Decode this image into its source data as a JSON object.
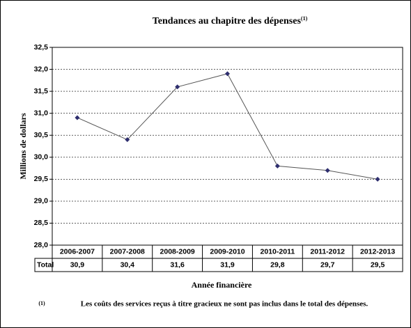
{
  "chart_data": {
    "type": "line",
    "title": "Tendances au chapitre des dépenses",
    "title_note": "(1)",
    "y_label": "Millions de dollars",
    "x_label": "Année financière",
    "categories": [
      "2006-2007",
      "2007-2008",
      "2008-2009",
      "2009-2010",
      "2010-2011",
      "2011-2012",
      "2012-2013"
    ],
    "values": [
      30.9,
      30.4,
      31.6,
      31.9,
      29.8,
      29.7,
      29.5
    ],
    "value_labels": [
      "30,9",
      "30,4",
      "31,6",
      "31,9",
      "29,8",
      "29,7",
      "29,5"
    ],
    "table_row_label": "Total",
    "line_color": "#555555",
    "marker_color": "#2e2e6e",
    "ylim": [
      28,
      32.5
    ],
    "yticks": [
      {
        "value": 28,
        "label": "28,0"
      },
      {
        "value": 28.5,
        "label": "28,5"
      },
      {
        "value": 29,
        "label": "29,0"
      },
      {
        "value": 29.5,
        "label": "29,5"
      },
      {
        "value": 30,
        "label": "30,0"
      },
      {
        "value": 30.5,
        "label": "30,5"
      },
      {
        "value": 31,
        "label": "31,0"
      },
      {
        "value": 31.5,
        "label": "31,5"
      },
      {
        "value": 32,
        "label": "32,0"
      },
      {
        "value": 32.5,
        "label": "32,5"
      }
    ],
    "grid": true,
    "footnote": {
      "marker": "(1)",
      "text": "Les coûts des services reçus à titre gracieux ne sont pas inclus dans le total des dépenses."
    }
  }
}
